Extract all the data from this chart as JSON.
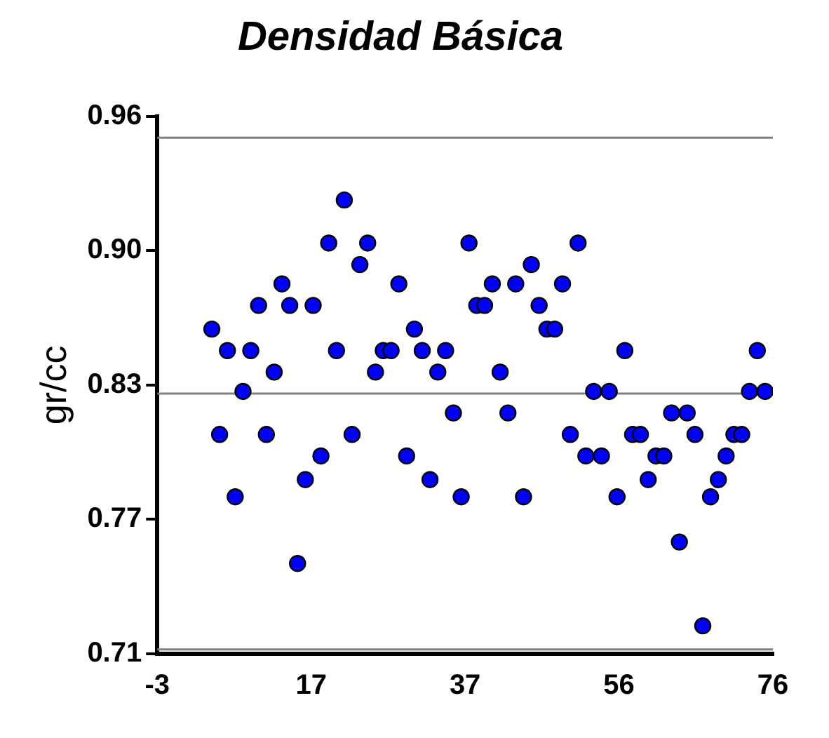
{
  "chart_data": {
    "type": "scatter",
    "title": "Densidad Básica",
    "ylabel": "gr/cc",
    "marker": "circle",
    "x": [
      4,
      5,
      6,
      7,
      8,
      9,
      10,
      11,
      12,
      13,
      14,
      15,
      16,
      17,
      18,
      19,
      20,
      21,
      22,
      23,
      24,
      25,
      26,
      27,
      28,
      29,
      30,
      31,
      32,
      33,
      34,
      35,
      36,
      37,
      38,
      39,
      40,
      41,
      42,
      43,
      44,
      45,
      46,
      47,
      48,
      49,
      50,
      51,
      52,
      53,
      54,
      55,
      56,
      57,
      58,
      59,
      60,
      61,
      62,
      63,
      64,
      65,
      66,
      67,
      68,
      69,
      70,
      71,
      72,
      73,
      74,
      75
    ],
    "series": [
      {
        "color": "#0000ff",
        "values": [
          0.861,
          0.812,
          0.851,
          0.783,
          0.832,
          0.851,
          0.872,
          0.812,
          0.841,
          0.882,
          0.872,
          0.752,
          0.791,
          0.872,
          0.802,
          0.901,
          0.851,
          0.921,
          0.812,
          0.891,
          0.901,
          0.841,
          0.851,
          0.851,
          0.882,
          0.802,
          0.861,
          0.851,
          0.791,
          0.841,
          0.851,
          0.822,
          0.783,
          0.901,
          0.872,
          0.872,
          0.882,
          0.841,
          0.822,
          0.882,
          0.783,
          0.891,
          0.872,
          0.861,
          0.861,
          0.882,
          0.812,
          0.901,
          0.802,
          0.832,
          0.802,
          0.832,
          0.783,
          0.851,
          0.812,
          0.812,
          0.791,
          0.802,
          0.802,
          0.822,
          0.762,
          0.822,
          0.812,
          0.723,
          0.783,
          0.791,
          0.802,
          0.812,
          0.812,
          0.832,
          0.851,
          0.832
        ]
      }
    ],
    "xlim": [
      -3,
      76
    ],
    "xticks": [
      -3,
      {
        "value": 16.75,
        "label": "17"
      },
      {
        "value": 36.5,
        "label": "37"
      },
      {
        "value": 56.25,
        "label": "56"
      },
      76
    ],
    "ylim": [
      0.71,
      0.96
    ],
    "yticks": [
      {
        "value": 0.71,
        "label": "0.71"
      },
      {
        "value": 0.7725,
        "label": "0.77"
      },
      {
        "value": 0.835,
        "label": "0.83"
      },
      {
        "value": 0.8975,
        "label": "0.90"
      },
      {
        "value": 0.96,
        "label": "0.96"
      }
    ],
    "ref_lines": [
      {
        "axis": "y",
        "value": 0.95,
        "color": "#808080"
      },
      {
        "axis": "y",
        "value": 0.831,
        "color": "#808080"
      },
      {
        "axis": "y",
        "value": 0.712,
        "color": "#808080"
      }
    ]
  }
}
